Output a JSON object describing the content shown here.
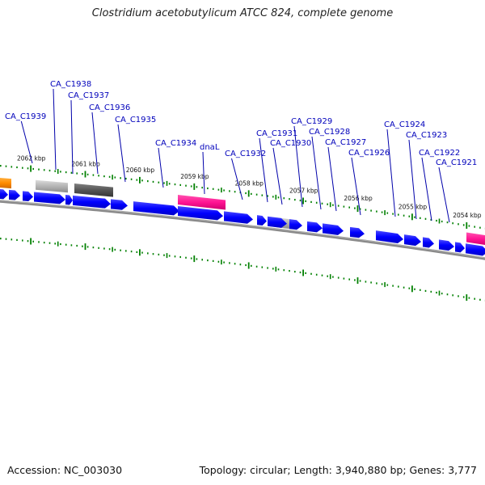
{
  "title": "Clostridium acetobutylicum ATCC 824, complete genome",
  "footer": {
    "accession": "Accession: NC_003030",
    "summary": "Topology: circular; Length: 3,940,880 bp; Genes: 3,777"
  },
  "colors": {
    "background": "#ffffff",
    "backbone": "#808080",
    "gene_blue": "#0000ff",
    "gene_magenta": "#ff1493",
    "gene_orange": "#ff8c00",
    "gene_lightgray": "#b4b4b4",
    "gene_darkgray": "#505050",
    "tick_green": "#008000",
    "label_blue": "#0000bb"
  },
  "scale": {
    "unit": "kbp",
    "ticks": [
      {
        "kbp": 2062,
        "label": "2062 kbp"
      },
      {
        "kbp": 2061,
        "label": "2061 kbp"
      },
      {
        "kbp": 2060,
        "label": "2060 kbp"
      },
      {
        "kbp": 2059,
        "label": "2059 kbp"
      },
      {
        "kbp": 2058,
        "label": "2058 kbp"
      },
      {
        "kbp": 2057,
        "label": "2057 kbp"
      },
      {
        "kbp": 2056,
        "label": "2056 kbp"
      },
      {
        "kbp": 2055,
        "label": "2055 kbp"
      },
      {
        "kbp": 2054,
        "label": "2054 kbp"
      }
    ]
  },
  "gene_labels": [
    {
      "label": "CA_C1939"
    },
    {
      "label": "CA_C1938"
    },
    {
      "label": "CA_C1937"
    },
    {
      "label": "CA_C1936"
    },
    {
      "label": "CA_C1935"
    },
    {
      "label": "CA_C1934"
    },
    {
      "label": "dnaL"
    },
    {
      "label": "CA_C1932"
    },
    {
      "label": "CA_C1931"
    },
    {
      "label": "CA_C1930"
    },
    {
      "label": "CA_C1929"
    },
    {
      "label": "CA_C1928"
    },
    {
      "label": "CA_C1927"
    },
    {
      "label": "CA_C1926"
    },
    {
      "label": "CA_C1924"
    },
    {
      "label": "CA_C1923"
    },
    {
      "label": "CA_C1922"
    },
    {
      "label": "CA_C1921"
    }
  ]
}
